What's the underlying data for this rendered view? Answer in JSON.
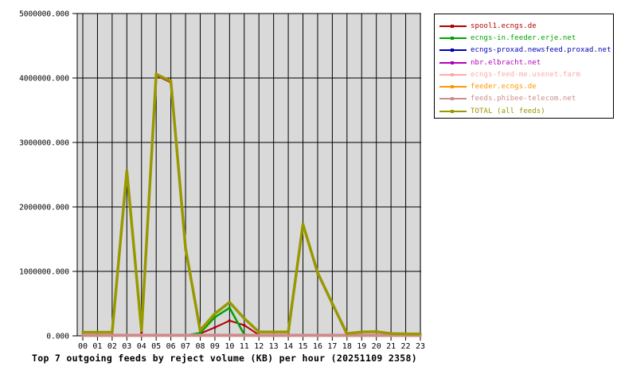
{
  "chart_data": {
    "type": "line",
    "title": "Top 7 outgoing feeds by reject volume (KB) per hour (20251109 2358)",
    "xlabel": "",
    "ylabel": "",
    "ylim": [
      0,
      5000000
    ],
    "grid": true,
    "legend_position": "outside-top-right",
    "plot_bg_color": "#d9d9d9",
    "grid_color": "#000000",
    "categories": [
      "00",
      "01",
      "02",
      "03",
      "04",
      "05",
      "06",
      "07",
      "08",
      "09",
      "10",
      "11",
      "12",
      "13",
      "14",
      "15",
      "16",
      "17",
      "18",
      "19",
      "20",
      "21",
      "22",
      "23"
    ],
    "y_ticks": [
      {
        "value": 0,
        "label": "0.000"
      },
      {
        "value": 1000000,
        "label": "1000000.000"
      },
      {
        "value": 2000000,
        "label": "2000000.000"
      },
      {
        "value": 3000000,
        "label": "3000000.000"
      },
      {
        "value": 4000000,
        "label": "4000000.000"
      },
      {
        "value": 5000000,
        "label": "5000000.000"
      }
    ],
    "series": [
      {
        "name": "spool1.ecngs.de",
        "color": "#b40000",
        "width": 2,
        "values": [
          5000,
          5000,
          5000,
          2530000,
          55000,
          4040000,
          3930000,
          1340000,
          35000,
          130000,
          235000,
          165000,
          15000,
          5000,
          5000,
          1710000,
          965000,
          490000,
          8000,
          8000,
          8000,
          6000,
          5000,
          5000
        ]
      },
      {
        "name": "ecngs-in.feeder.erje.net",
        "color": "#00a400",
        "width": 2.5,
        "values": [
          2000,
          2000,
          2000,
          10000,
          3000,
          8000,
          8000,
          5000,
          45000,
          290000,
          435000,
          20000,
          2000,
          2000,
          2000,
          5000,
          4000,
          2000,
          2000,
          2000,
          2000,
          2000,
          2000,
          2000
        ]
      },
      {
        "name": "ecngs-proxad.newsfeed.proxad.net",
        "color": "#0000b4",
        "width": 2,
        "values": [
          2000,
          2000,
          2000,
          2000,
          2000,
          2000,
          2000,
          2000,
          2000,
          2000,
          2000,
          2000,
          2000,
          2000,
          2000,
          2000,
          2000,
          2000,
          2000,
          2000,
          2000,
          2000,
          2000,
          2000
        ]
      },
      {
        "name": "nbr.elbracht.net",
        "color": "#b400b4",
        "width": 2,
        "values": [
          2000,
          2000,
          2000,
          2000,
          2000,
          2000,
          2000,
          2000,
          2000,
          2000,
          2000,
          2000,
          2000,
          2000,
          2000,
          2000,
          2000,
          2000,
          2000,
          2000,
          2000,
          2000,
          2000,
          2000
        ]
      },
      {
        "name": "ecngs-feed-me.usenet.farm",
        "color": "#ffaaaa",
        "width": 2,
        "values": [
          2000,
          2000,
          2000,
          2000,
          2000,
          2000,
          2000,
          2000,
          2000,
          2000,
          2000,
          2000,
          2000,
          2000,
          2000,
          2000,
          2000,
          2000,
          2000,
          2000,
          2000,
          2000,
          2000,
          2000
        ]
      },
      {
        "name": "feeder.ecngs.de",
        "color": "#ff9600",
        "width": 2,
        "values": [
          3000,
          3000,
          3000,
          3000,
          3000,
          3000,
          3000,
          3000,
          3000,
          3000,
          3000,
          3000,
          3000,
          3000,
          3000,
          3000,
          3000,
          3000,
          3000,
          3000,
          3000,
          3000,
          3000,
          3000
        ]
      },
      {
        "name": "feeds.phibee-telecom.net",
        "color": "#cd8c8c",
        "width": 4,
        "values": [
          8000,
          8000,
          8000,
          8000,
          8000,
          8000,
          8000,
          8000,
          8000,
          8000,
          8000,
          8000,
          8000,
          8000,
          8000,
          8000,
          8000,
          8000,
          8000,
          8000,
          8000,
          8000,
          8000,
          8000
        ]
      },
      {
        "name": "TOTAL (all feeds)",
        "color": "#989800",
        "width": 3.5,
        "values": [
          55000,
          55000,
          55000,
          2560000,
          80000,
          4060000,
          3950000,
          1360000,
          85000,
          345000,
          520000,
          270000,
          60000,
          60000,
          60000,
          1730000,
          980000,
          500000,
          35000,
          60000,
          65000,
          35000,
          30000,
          30000
        ]
      }
    ]
  }
}
